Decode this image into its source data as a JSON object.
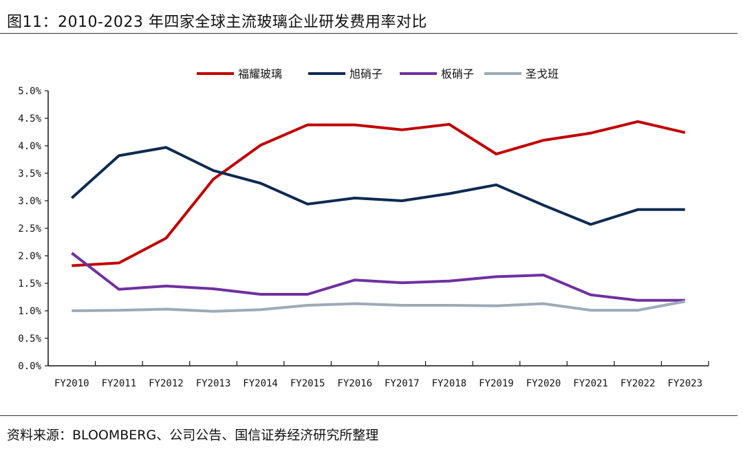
{
  "title": "图11：2010-2023 年四家全球主流玻璃企业研发费用率对比",
  "source": "资料来源：BLOOMBERG、公司公告、国信证券经济研究所整理",
  "chart_data": {
    "type": "line",
    "title": "2010-2023 年四家全球主流玻璃企业研发费用率对比",
    "xlabel": "",
    "ylabel": "",
    "ylim": [
      0,
      5
    ],
    "yticks": [
      "0.0%",
      "0.5%",
      "1.0%",
      "1.5%",
      "2.0%",
      "2.5%",
      "3.0%",
      "3.5%",
      "4.0%",
      "4.5%",
      "5.0%"
    ],
    "legend_position": "top",
    "grid": false,
    "categories": [
      "FY2010",
      "FY2011",
      "FY2012",
      "FY2013",
      "FY2014",
      "FY2015",
      "FY2016",
      "FY2017",
      "FY2018",
      "FY2019",
      "FY2020",
      "FY2021",
      "FY2022",
      "FY2023"
    ],
    "series": [
      {
        "name": "福耀玻璃",
        "color": "#c00000",
        "values": [
          1.82,
          1.87,
          2.32,
          3.39,
          4.01,
          4.38,
          4.38,
          4.29,
          4.39,
          3.85,
          4.1,
          4.23,
          4.44,
          4.24
        ]
      },
      {
        "name": "旭硝子",
        "color": "#0e2a52",
        "values": [
          3.05,
          3.82,
          3.97,
          3.55,
          3.32,
          2.94,
          3.05,
          3.0,
          3.13,
          3.29,
          2.92,
          2.57,
          2.84,
          2.84
        ]
      },
      {
        "name": "板硝子",
        "color": "#7030a0",
        "values": [
          2.05,
          1.39,
          1.45,
          1.4,
          1.3,
          1.3,
          1.56,
          1.51,
          1.54,
          1.62,
          1.65,
          1.29,
          1.19,
          1.19
        ]
      },
      {
        "name": "圣戈班",
        "color": "#9caab9",
        "values": [
          1.0,
          1.01,
          1.03,
          0.99,
          1.02,
          1.1,
          1.13,
          1.1,
          1.1,
          1.09,
          1.13,
          1.01,
          1.01,
          1.17
        ]
      }
    ]
  }
}
